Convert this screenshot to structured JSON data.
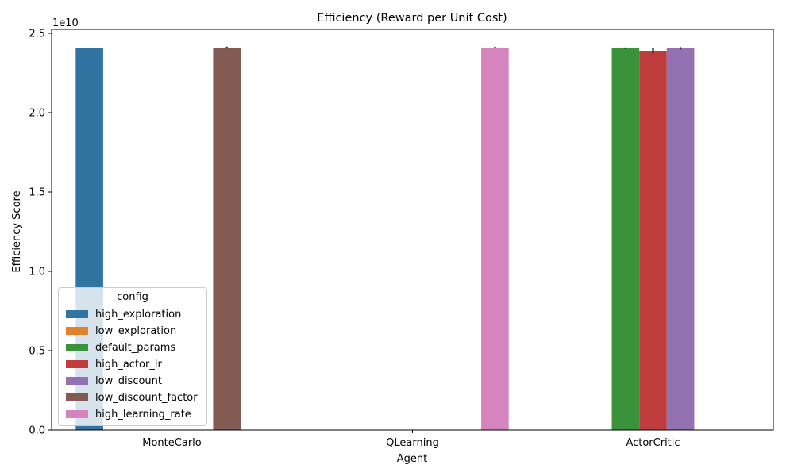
{
  "chart_data": {
    "type": "bar",
    "title": "Efficiency (Reward per Unit Cost)",
    "xlabel": "Agent",
    "ylabel": "Efficiency Score",
    "y_multiplier_label": "1e10",
    "categories": [
      "MonteCarlo",
      "QLearning",
      "ActorCritic"
    ],
    "y_ticks": [
      "0.0",
      "0.5",
      "1.0",
      "1.5",
      "2.0",
      "2.5"
    ],
    "y_tick_values": [
      0,
      0.5,
      1.0,
      1.5,
      2.0,
      2.5
    ],
    "ylim": [
      0,
      2.5
    ],
    "value_scale": "1e10",
    "grid": false,
    "legend_title": "config",
    "legend_placement": "lower-left",
    "series": [
      {
        "name": "high_exploration",
        "color": "#3274a1",
        "values": [
          2.41,
          null,
          null
        ],
        "err": [
          0,
          null,
          null
        ]
      },
      {
        "name": "low_exploration",
        "color": "#e1812c",
        "values": [
          null,
          null,
          null
        ],
        "err": [
          null,
          null,
          null
        ]
      },
      {
        "name": "default_params",
        "color": "#3a923a",
        "values": [
          null,
          null,
          2.405
        ],
        "err": [
          null,
          null,
          0.006
        ]
      },
      {
        "name": "high_actor_lr",
        "color": "#c03d3e",
        "values": [
          null,
          null,
          2.39
        ],
        "err": [
          null,
          null,
          0.02
        ]
      },
      {
        "name": "low_discount",
        "color": "#9372b2",
        "values": [
          null,
          null,
          2.405
        ],
        "err": [
          null,
          null,
          0.008
        ]
      },
      {
        "name": "low_discount_factor",
        "color": "#845b53",
        "values": [
          2.41,
          null,
          null
        ],
        "err": [
          0.006,
          null,
          null
        ]
      },
      {
        "name": "high_learning_rate",
        "color": "#d684bd",
        "values": [
          null,
          2.41,
          null
        ],
        "err": [
          null,
          0.005,
          null
        ]
      }
    ]
  }
}
